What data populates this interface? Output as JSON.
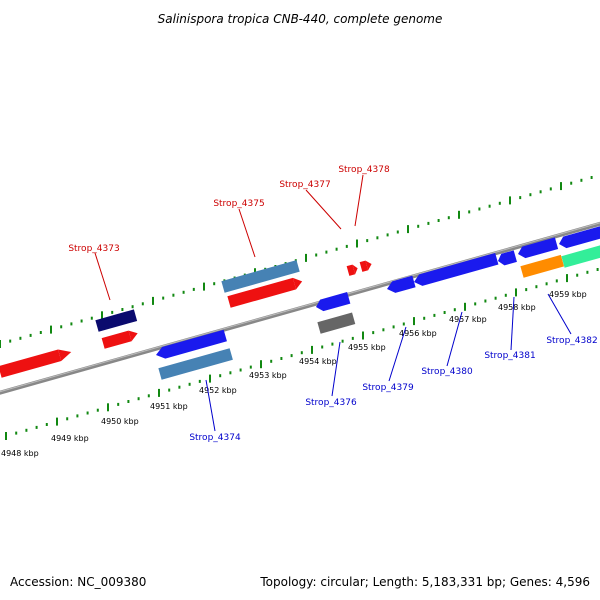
{
  "title": "Salinispora tropica CNB-440, complete genome",
  "footer": {
    "accession": "Accession: NC_009380",
    "summary": "Topology: circular; Length: 5,183,331 bp; Genes: 4,596"
  },
  "colors": {
    "red": "#ee1111",
    "navy": "#0a0a6e",
    "steelblue": "#4682b4",
    "blue": "#1a1aee",
    "gray": "#666666",
    "orange": "#ff8c00",
    "springgreen": "#33ee99",
    "tick_green": "#118811",
    "backbone": "#888888",
    "label_red": "#cc0000",
    "label_blue": "#0000cc"
  },
  "scale_labels": [
    "4948 kbp",
    "4949 kbp",
    "4950 kbp",
    "4951 kbp",
    "4952 kbp",
    "4953 kbp",
    "4954 kbp",
    "4955 kbp",
    "4956 kbp",
    "4957 kbp",
    "4958 kbp",
    "4959 kbp"
  ],
  "gene_labels_top": [
    "Strop_4373",
    "Strop_4375",
    "Strop_4377",
    "Strop_4378"
  ],
  "gene_labels_bottom": [
    "Strop_4374",
    "Strop_4376",
    "Strop_4379",
    "Strop_4380",
    "Strop_4381",
    "Strop_4382"
  ]
}
